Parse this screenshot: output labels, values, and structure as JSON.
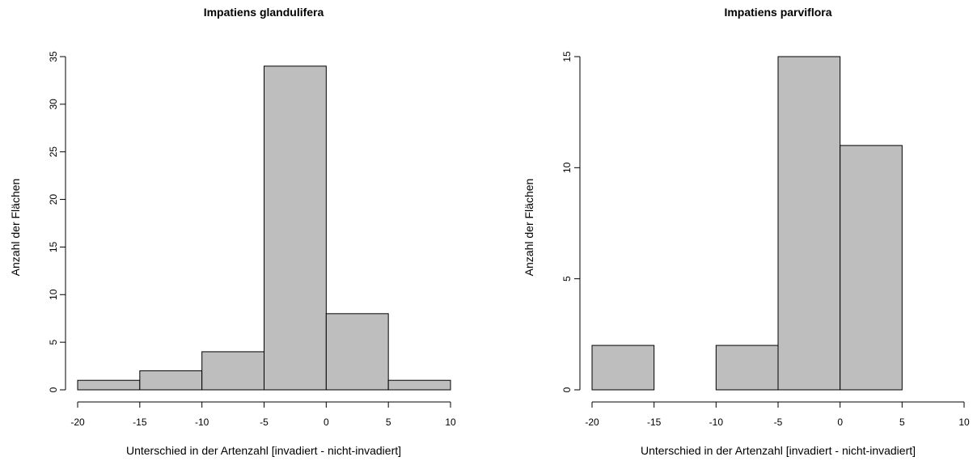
{
  "chart_data": [
    {
      "type": "bar",
      "title": "Impatiens glandulifera",
      "xlabel": "Unterschied in der Artenzahl [invadiert - nicht-invadiert]",
      "ylabel": "Anzahl der Flächen",
      "bins": [
        [
          -20,
          -15
        ],
        [
          -15,
          -10
        ],
        [
          -10,
          -5
        ],
        [
          -5,
          0
        ],
        [
          0,
          5
        ],
        [
          5,
          10
        ]
      ],
      "values": [
        1,
        2,
        4,
        34,
        8,
        1
      ],
      "xlim": [
        -20,
        10
      ],
      "ylim": [
        0,
        35
      ],
      "xticks": [
        "-20",
        "-15",
        "-10",
        "-5",
        "0",
        "5",
        "10"
      ],
      "yticks": [
        "0",
        "5",
        "10",
        "15",
        "20",
        "25",
        "30",
        "35"
      ],
      "bar_color": "#bebebe",
      "grid": false
    },
    {
      "type": "bar",
      "title": "Impatiens parviflora",
      "xlabel": "Unterschied in der Artenzahl [invadiert - nicht-invadiert]",
      "ylabel": "Anzahl der Flächen",
      "bins": [
        [
          -20,
          -15
        ],
        [
          -15,
          -10
        ],
        [
          -10,
          -5
        ],
        [
          -5,
          0
        ],
        [
          0,
          5
        ],
        [
          5,
          10
        ]
      ],
      "values": [
        2,
        0,
        2,
        15,
        11,
        0
      ],
      "xlim": [
        -20,
        10
      ],
      "ylim": [
        0,
        15
      ],
      "xticks": [
        "-20",
        "-15",
        "-10",
        "-5",
        "0",
        "5",
        "10"
      ],
      "yticks": [
        "0",
        "5",
        "10",
        "15"
      ],
      "bar_color": "#bebebe",
      "grid": false
    }
  ]
}
